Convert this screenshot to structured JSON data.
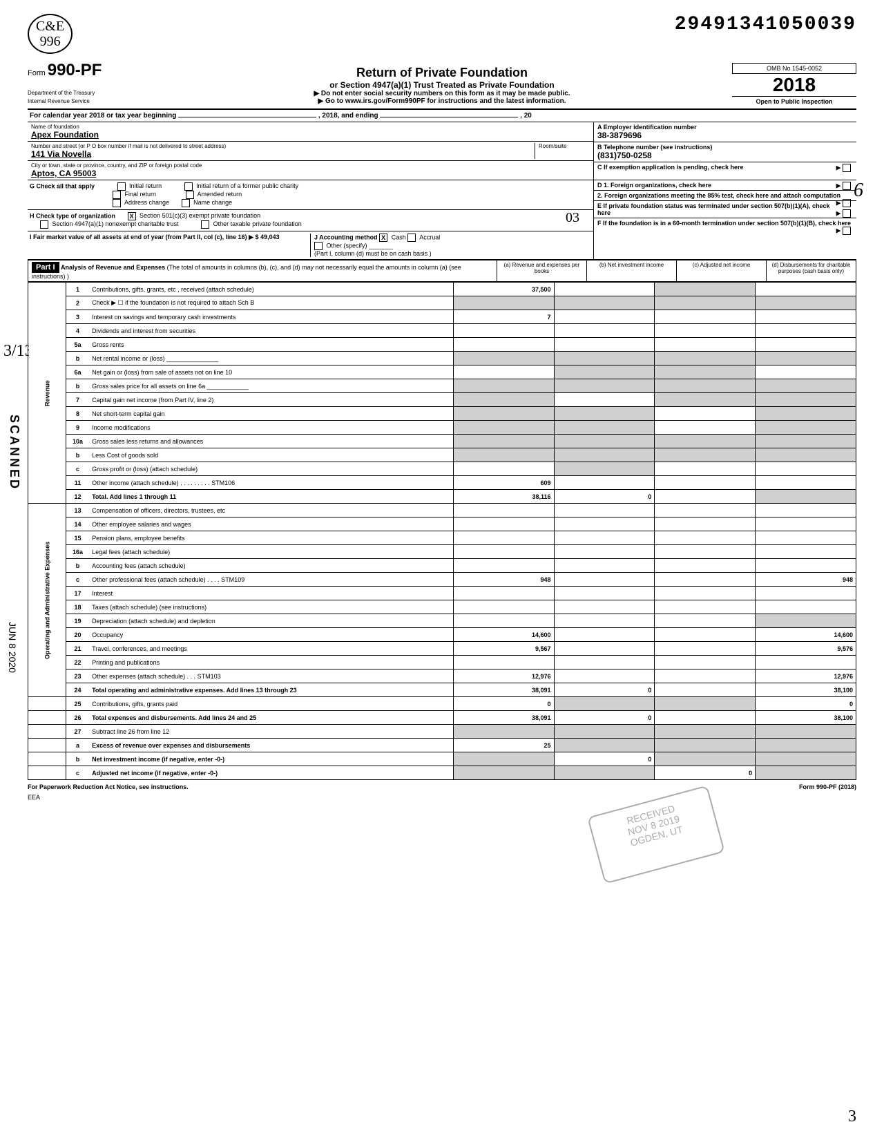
{
  "header": {
    "handwritten": "C&E\n996",
    "dln": "29491341050039",
    "form_prefix": "Form",
    "form_number": "990-PF",
    "title": "Return of Private Foundation",
    "subtitle": "or Section 4947(a)(1) Trust Treated as Private Foundation",
    "instruction1": "▶ Do not enter social security numbers on this form as it may be made public.",
    "instruction2": "▶ Go to www.irs.gov/Form990PF for instructions and the latest information.",
    "dept": "Department of the Treasury\nInternal Revenue Service",
    "omb": "OMB No 1545-0052",
    "year": "2018",
    "inspection": "Open to Public Inspection"
  },
  "calendar": {
    "text": "For calendar year 2018 or tax year beginning",
    "mid": ", 2018, and ending",
    "end": ", 20"
  },
  "ident": {
    "name_label": "Name of foundation",
    "name": "Apex Foundation",
    "street_label": "Number and street (or P O box number if mail is not delivered to street address)",
    "room_label": "Room/suite",
    "street": "141 Via Novella",
    "city_label": "City or town, state or province, country, and ZIP or foreign postal code",
    "city": "Aptos, CA 95003",
    "a_label": "A Employer identification number",
    "ein": "38-3879696",
    "b_label": "B Telephone number (see instructions)",
    "phone": "(831)750-0258",
    "c_label": "C If exemption application is pending, check here",
    "d1_label": "D 1. Foreign organizations, check here",
    "d2_label": "2. Foreign organizations meeting the 85% test, check here and attach computation",
    "e_label": "E If private foundation status was terminated under section 507(b)(1)(A), check here",
    "f_label": "F If the foundation is in a 60-month termination under section 507(b)(1)(B), check here"
  },
  "checks": {
    "g_label": "G Check all that apply",
    "g_opts": [
      "Initial return",
      "Final return",
      "Address change",
      "Initial return of a former public charity",
      "Amended return",
      "Name change"
    ],
    "h_label": "H Check type of organization",
    "h_501": "Section 501(c)(3) exempt private foundation",
    "h_4947": "Section 4947(a)(1) nonexempt charitable trust",
    "h_other": "Other taxable private foundation",
    "h_03": "03",
    "i_label": "I  Fair market value of all assets at end of year (from Part II, col (c), line 16) ▶ $",
    "i_value": "49,043",
    "j_label": "J  Accounting method",
    "j_cash": "Cash",
    "j_accrual": "Accrual",
    "j_other": "Other (specify)",
    "j_note": "(Part I, column (d) must be on cash basis )"
  },
  "part1": {
    "label": "Part I",
    "title": "Analysis of Revenue and Expenses",
    "note": "(The total of amounts in columns (b), (c), and (d) may not necessarily equal the amounts in column (a) (see instructions) )",
    "col_a": "(a) Revenue and expenses per books",
    "col_b": "(b) Net investment income",
    "col_c": "(c) Adjusted net income",
    "col_d": "(d) Disbursements for charitable purposes (cash basis only)"
  },
  "sides": {
    "revenue": "Revenue",
    "expenses": "Operating and Administrative Expenses",
    "scanned": "SCANNED",
    "date": "JUN  8 2020"
  },
  "lines": [
    {
      "n": "1",
      "d": "Contributions, gifts, grants, etc , received (attach schedule)",
      "a": "37,500",
      "shade": [
        "c"
      ]
    },
    {
      "n": "2",
      "d": "Check ▶ ☐ if the foundation is not required to attach Sch B",
      "a": "",
      "shade": [
        "a",
        "b",
        "c",
        "d"
      ]
    },
    {
      "n": "3",
      "d": "Interest on savings and temporary cash investments",
      "a": "7"
    },
    {
      "n": "4",
      "d": "Dividends and interest from securities",
      "a": ""
    },
    {
      "n": "5a",
      "d": "Gross rents",
      "a": ""
    },
    {
      "n": "b",
      "d": "Net rental income or (loss) _______________",
      "a": "",
      "shade": [
        "a",
        "b",
        "c",
        "d"
      ]
    },
    {
      "n": "6a",
      "d": "Net gain or (loss) from sale of assets not on line 10",
      "a": "",
      "shade": [
        "b",
        "c"
      ]
    },
    {
      "n": "b",
      "d": "Gross sales price for all assets on line 6a ____________",
      "a": "",
      "shade": [
        "a",
        "b",
        "c",
        "d"
      ]
    },
    {
      "n": "7",
      "d": "Capital gain net income (from Part IV, line 2)",
      "a": "",
      "shade": [
        "a",
        "c",
        "d"
      ]
    },
    {
      "n": "8",
      "d": "Net short-term capital gain",
      "a": "",
      "shade": [
        "a",
        "b",
        "d"
      ]
    },
    {
      "n": "9",
      "d": "Income modifications",
      "a": "",
      "shade": [
        "a",
        "b",
        "d"
      ]
    },
    {
      "n": "10a",
      "d": "Gross sales less returns and allowances",
      "a": "",
      "shade": [
        "a",
        "b",
        "c",
        "d"
      ]
    },
    {
      "n": "b",
      "d": "Less Cost of goods sold",
      "a": "",
      "shade": [
        "a",
        "b",
        "c",
        "d"
      ]
    },
    {
      "n": "c",
      "d": "Gross profit or (loss) (attach schedule)",
      "a": "",
      "shade": [
        "b"
      ]
    },
    {
      "n": "11",
      "d": "Other income (attach schedule)  . . . . . . . . . STM106",
      "a": "609",
      "shade": []
    },
    {
      "n": "12",
      "d": "Total. Add lines 1 through 11",
      "a": "38,116",
      "b": "0",
      "shade": [
        "d"
      ],
      "bold": true
    },
    {
      "n": "13",
      "d": "Compensation of officers, directors, trustees, etc",
      "a": ""
    },
    {
      "n": "14",
      "d": "Other employee salaries and wages",
      "a": ""
    },
    {
      "n": "15",
      "d": "Pension plans, employee benefits",
      "a": ""
    },
    {
      "n": "16a",
      "d": "Legal fees (attach schedule)",
      "a": ""
    },
    {
      "n": "b",
      "d": "Accounting fees (attach schedule)",
      "a": ""
    },
    {
      "n": "c",
      "d": "Other professional fees (attach schedule)  . . . . STM109",
      "a": "948",
      "dcol": "948"
    },
    {
      "n": "17",
      "d": "Interest",
      "a": ""
    },
    {
      "n": "18",
      "d": "Taxes (attach schedule) (see instructions)",
      "a": ""
    },
    {
      "n": "19",
      "d": "Depreciation (attach schedule) and depletion",
      "a": "",
      "shade": [
        "d"
      ]
    },
    {
      "n": "20",
      "d": "Occupancy",
      "a": "14,600",
      "dcol": "14,600"
    },
    {
      "n": "21",
      "d": "Travel, conferences, and meetings",
      "a": "9,567",
      "dcol": "9,576"
    },
    {
      "n": "22",
      "d": "Printing and publications",
      "a": ""
    },
    {
      "n": "23",
      "d": "Other expenses (attach schedule)  . . . STM103",
      "a": "12,976",
      "dcol": "12,976"
    },
    {
      "n": "24",
      "d": "Total operating and administrative expenses. Add lines 13 through 23",
      "a": "38,091",
      "b": "0",
      "dcol": "38,100",
      "bold": true
    },
    {
      "n": "25",
      "d": "Contributions, gifts, grants paid",
      "a": "0",
      "dcol": "0",
      "shade": [
        "b",
        "c"
      ]
    },
    {
      "n": "26",
      "d": "Total expenses and disbursements. Add lines 24 and 25",
      "a": "38,091",
      "b": "0",
      "dcol": "38,100",
      "bold": true
    },
    {
      "n": "27",
      "d": "Subtract line 26 from line 12",
      "a": "",
      "shade": [
        "a",
        "b",
        "c",
        "d"
      ]
    },
    {
      "n": "a",
      "d": "Excess of revenue over expenses and disbursements",
      "a": "25",
      "shade": [
        "b",
        "c",
        "d"
      ],
      "bold": true
    },
    {
      "n": "b",
      "d": "Net investment income (if negative, enter -0-)",
      "b": "0",
      "shade": [
        "a",
        "c",
        "d"
      ],
      "bold": true
    },
    {
      "n": "c",
      "d": "Adjusted net income (if negative, enter -0-)",
      "c": "0",
      "shade": [
        "a",
        "b",
        "d"
      ],
      "bold": true
    }
  ],
  "footer": {
    "left": "For Paperwork Reduction Act Notice, see instructions.",
    "right": "Form 990-PF (2018)",
    "eea": "EEA"
  },
  "margins": {
    "n313": "3/13",
    "pencil6": "6",
    "pencil3": "3"
  },
  "stamp": {
    "l1": "RECEIVED",
    "l2": "NOV 8 2019",
    "l3": "OGDEN, UT"
  }
}
